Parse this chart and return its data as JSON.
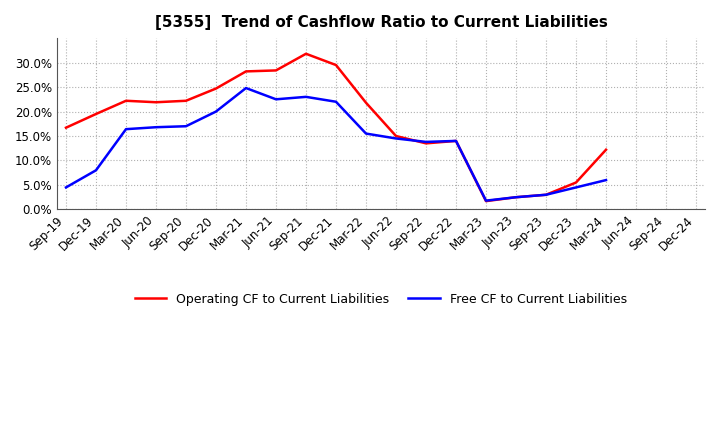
{
  "title": "[5355]  Trend of Cashflow Ratio to Current Liabilities",
  "x_labels": [
    "Sep-19",
    "Dec-19",
    "Mar-20",
    "Jun-20",
    "Sep-20",
    "Dec-20",
    "Mar-21",
    "Jun-21",
    "Sep-21",
    "Dec-21",
    "Mar-22",
    "Jun-22",
    "Sep-22",
    "Dec-22",
    "Mar-23",
    "Jun-23",
    "Sep-23",
    "Dec-23",
    "Mar-24",
    "Jun-24",
    "Sep-24",
    "Dec-24"
  ],
  "operating_cf": [
    0.167,
    0.195,
    0.222,
    0.219,
    0.222,
    0.247,
    0.282,
    0.284,
    0.318,
    0.295,
    0.218,
    0.15,
    0.135,
    0.14,
    0.017,
    0.025,
    0.03,
    0.055,
    0.122,
    null,
    null,
    null
  ],
  "free_cf": [
    0.045,
    0.08,
    0.164,
    0.168,
    0.17,
    0.2,
    0.248,
    0.225,
    0.23,
    0.22,
    0.155,
    0.145,
    0.138,
    0.14,
    0.018,
    0.025,
    0.03,
    0.045,
    0.06,
    null,
    null,
    null
  ],
  "operating_color": "#ff0000",
  "free_color": "#0000ff",
  "ylim": [
    0.0,
    0.35
  ],
  "yticks": [
    0.0,
    0.05,
    0.1,
    0.15,
    0.2,
    0.25,
    0.3
  ],
  "background_color": "#ffffff",
  "grid_color": "#b0b0b0",
  "title_fontsize": 11,
  "tick_fontsize": 8.5,
  "legend_fontsize": 9
}
